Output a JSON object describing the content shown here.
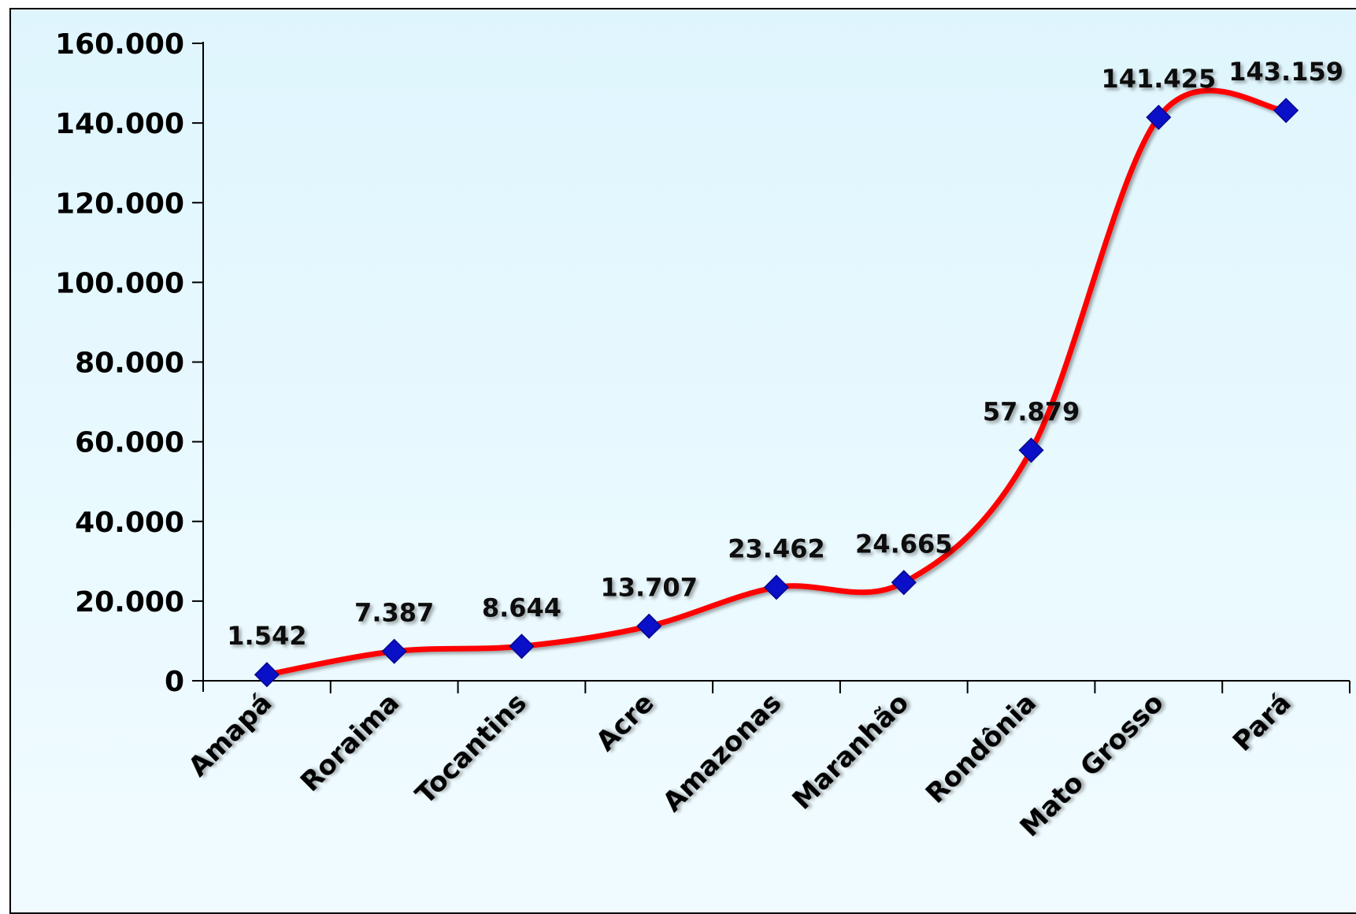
{
  "chart_data": {
    "type": "line",
    "categories": [
      "Amapá",
      "Roraima",
      "Tocantins",
      "Acre",
      "Amazonas",
      "Maranhão",
      "Rondônia",
      "Mato Grosso",
      "Pará"
    ],
    "series": [
      {
        "values": [
          1542,
          7387,
          8644,
          13707,
          23462,
          24665,
          57879,
          141425,
          143159
        ],
        "data_labels": [
          "1.542",
          "7.387",
          "8.644",
          "13.707",
          "23.462",
          "24.665",
          "57.879",
          "141.425",
          "143.159"
        ],
        "line_color": "#ff0000",
        "marker_color": "#0a10c8",
        "marker": "diamond",
        "smooth": true
      }
    ],
    "yticks": [
      0,
      20000,
      40000,
      60000,
      80000,
      100000,
      120000,
      140000,
      160000
    ],
    "ytick_labels": [
      "0",
      "20.000",
      "40.000",
      "60.000",
      "80.000",
      "100.000",
      "120.000",
      "140.000",
      "160.000"
    ],
    "ylim": [
      0,
      160000
    ],
    "grid": false,
    "legend": "none",
    "title": "",
    "xlabel": "",
    "ylabel": ""
  }
}
